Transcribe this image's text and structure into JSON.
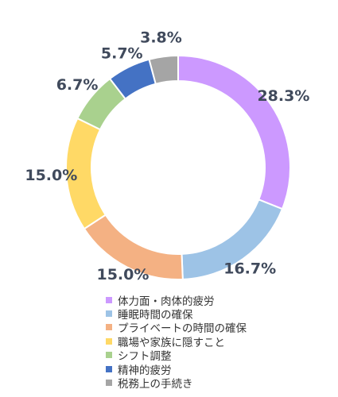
{
  "chart_data": {
    "type": "pie",
    "variant": "donut",
    "legend_placement": "bottom",
    "slices": [
      {
        "label": "体力面・肉体的疲労",
        "value": 28.3,
        "value_label": "28.3%",
        "color": "#cc99ff"
      },
      {
        "label": "睡眠時間の確保",
        "value": 16.7,
        "value_label": "16.7%",
        "color": "#9dc3e6"
      },
      {
        "label": "プライベートの時間の確保",
        "value": 15.0,
        "value_label": "15.0%",
        "color": "#f4b183"
      },
      {
        "label": "職場や家族に隠すこと",
        "value": 15.0,
        "value_label": "15.0%",
        "color": "#ffd966"
      },
      {
        "label": "シフト調整",
        "value": 6.7,
        "value_label": "6.7%",
        "color": "#a9d18e"
      },
      {
        "label": "精神的疲労",
        "value": 5.7,
        "value_label": "5.7%",
        "color": "#4472c4"
      },
      {
        "label": "税務上の手続き",
        "value": 3.8,
        "value_label": "3.8%",
        "color": "#a5a5a5"
      }
    ]
  }
}
